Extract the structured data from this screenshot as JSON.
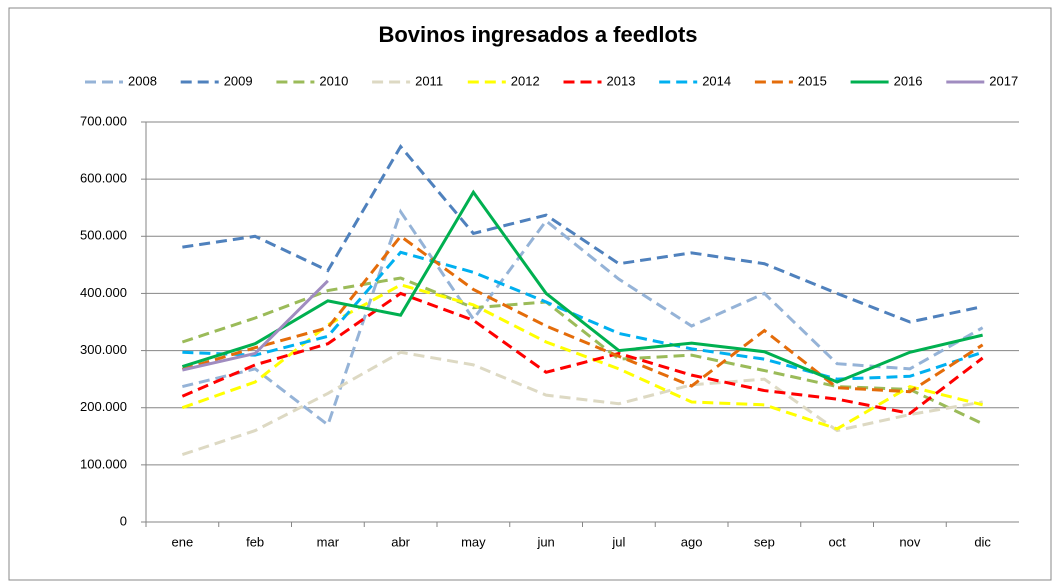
{
  "chart_data": {
    "type": "line",
    "title": "Bovinos ingresados a feedlots",
    "categories": [
      "ene",
      "feb",
      "mar",
      "abr",
      "may",
      "jun",
      "jul",
      "ago",
      "sep",
      "oct",
      "nov",
      "dic"
    ],
    "ylim": [
      0,
      700000
    ],
    "yticks": [
      {
        "value": 0,
        "label": "0"
      },
      {
        "value": 100000,
        "label": "100.000"
      },
      {
        "value": 200000,
        "label": "200.000"
      },
      {
        "value": 300000,
        "label": "300.000"
      },
      {
        "value": 400000,
        "label": "400.000"
      },
      {
        "value": 500000,
        "label": "500.000"
      },
      {
        "value": 600000,
        "label": "600.000"
      },
      {
        "value": 700000,
        "label": "700.000"
      }
    ],
    "grid": true,
    "legend": "top",
    "series": [
      {
        "name": "2008",
        "color": "#95b3d7",
        "style": "dashed",
        "values": [
          237000,
          268000,
          170000,
          543000,
          355000,
          527000,
          425000,
          343000,
          400000,
          277000,
          268000,
          340000
        ]
      },
      {
        "name": "2009",
        "color": "#4f81bd",
        "style": "dashed",
        "values": [
          481000,
          500000,
          440000,
          657000,
          505000,
          537000,
          452000,
          471000,
          452000,
          400000,
          350000,
          377000
        ]
      },
      {
        "name": "2010",
        "color": "#9bbb59",
        "style": "dashed",
        "values": [
          315000,
          357000,
          405000,
          427000,
          375000,
          385000,
          285000,
          292000,
          265000,
          237000,
          232000,
          172000
        ]
      },
      {
        "name": "2011",
        "color": "#ddd9c3",
        "style": "dashed",
        "values": [
          118000,
          160000,
          225000,
          297000,
          275000,
          222000,
          207000,
          240000,
          250000,
          160000,
          188000,
          210000
        ]
      },
      {
        "name": "2012",
        "color": "#ffff00",
        "style": "dashed",
        "values": [
          200000,
          245000,
          345000,
          415000,
          380000,
          315000,
          268000,
          210000,
          205000,
          163000,
          237000,
          205000
        ]
      },
      {
        "name": "2013",
        "color": "#ff0000",
        "style": "dashed",
        "values": [
          220000,
          275000,
          312000,
          400000,
          353000,
          262000,
          295000,
          257000,
          230000,
          215000,
          190000,
          287000
        ]
      },
      {
        "name": "2014",
        "color": "#00b0f0",
        "style": "dashed",
        "values": [
          297000,
          292000,
          325000,
          472000,
          437000,
          385000,
          330000,
          303000,
          285000,
          250000,
          255000,
          297000
        ]
      },
      {
        "name": "2015",
        "color": "#e46c0a",
        "style": "dashed",
        "values": [
          267000,
          305000,
          340000,
          500000,
          407000,
          343000,
          290000,
          238000,
          335000,
          235000,
          228000,
          310000
        ]
      },
      {
        "name": "2016",
        "color": "#00b050",
        "style": "solid",
        "values": [
          272000,
          312000,
          387000,
          362000,
          577000,
          400000,
          300000,
          313000,
          298000,
          245000,
          297000,
          327000
        ]
      },
      {
        "name": "2017",
        "color": "#a08cc0",
        "style": "solid",
        "values": [
          266000,
          295000,
          422000,
          null,
          null,
          null,
          null,
          null,
          null,
          null,
          null,
          null
        ]
      }
    ]
  }
}
